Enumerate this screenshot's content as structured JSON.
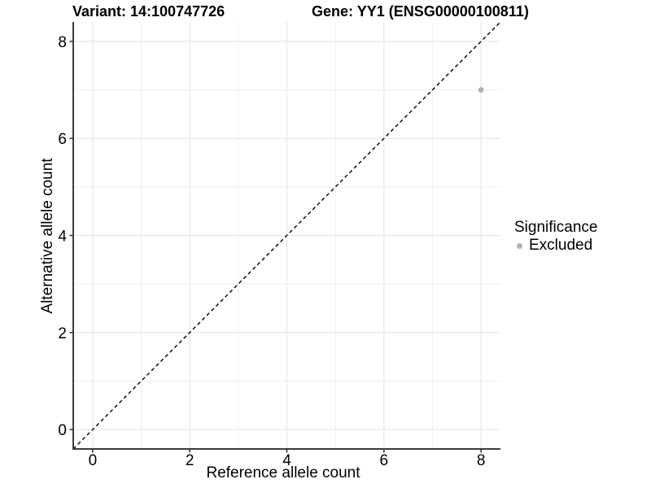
{
  "chart_data": {
    "type": "scatter",
    "title_left": "Variant: 14:100747726",
    "title_right": "Gene: YY1 (ENSG00000100811)",
    "xlabel": "Reference allele count",
    "ylabel": "Alternative allele count",
    "xlim": [
      -0.4,
      8.4
    ],
    "ylim": [
      -0.4,
      8.4
    ],
    "xticks": [
      0,
      2,
      4,
      6,
      8
    ],
    "yticks": [
      0,
      2,
      4,
      6,
      8
    ],
    "xticks_minor": [
      1,
      3,
      5,
      7
    ],
    "yticks_minor": [
      1,
      3,
      5,
      7
    ],
    "grid": "major+minor",
    "series": [
      {
        "name": "Excluded",
        "color": "#b1b1b1",
        "points": [
          {
            "x": 8,
            "y": 7
          }
        ]
      }
    ],
    "reference_line": {
      "kind": "identity",
      "from": [
        -0.4,
        -0.4
      ],
      "to": [
        8.4,
        8.4
      ],
      "style": "dashed",
      "color": "#000000"
    },
    "legend": {
      "position": "right",
      "title": "Significance",
      "items": [
        {
          "label": "Excluded",
          "color": "#b1b1b1"
        }
      ]
    },
    "colors": {
      "background": "#ffffff",
      "grid_major": "#e5e5e5",
      "grid_minor": "#efefef",
      "axis_line": "#3c3c3c",
      "tick_mark": "#333333",
      "text": "#000000"
    }
  }
}
